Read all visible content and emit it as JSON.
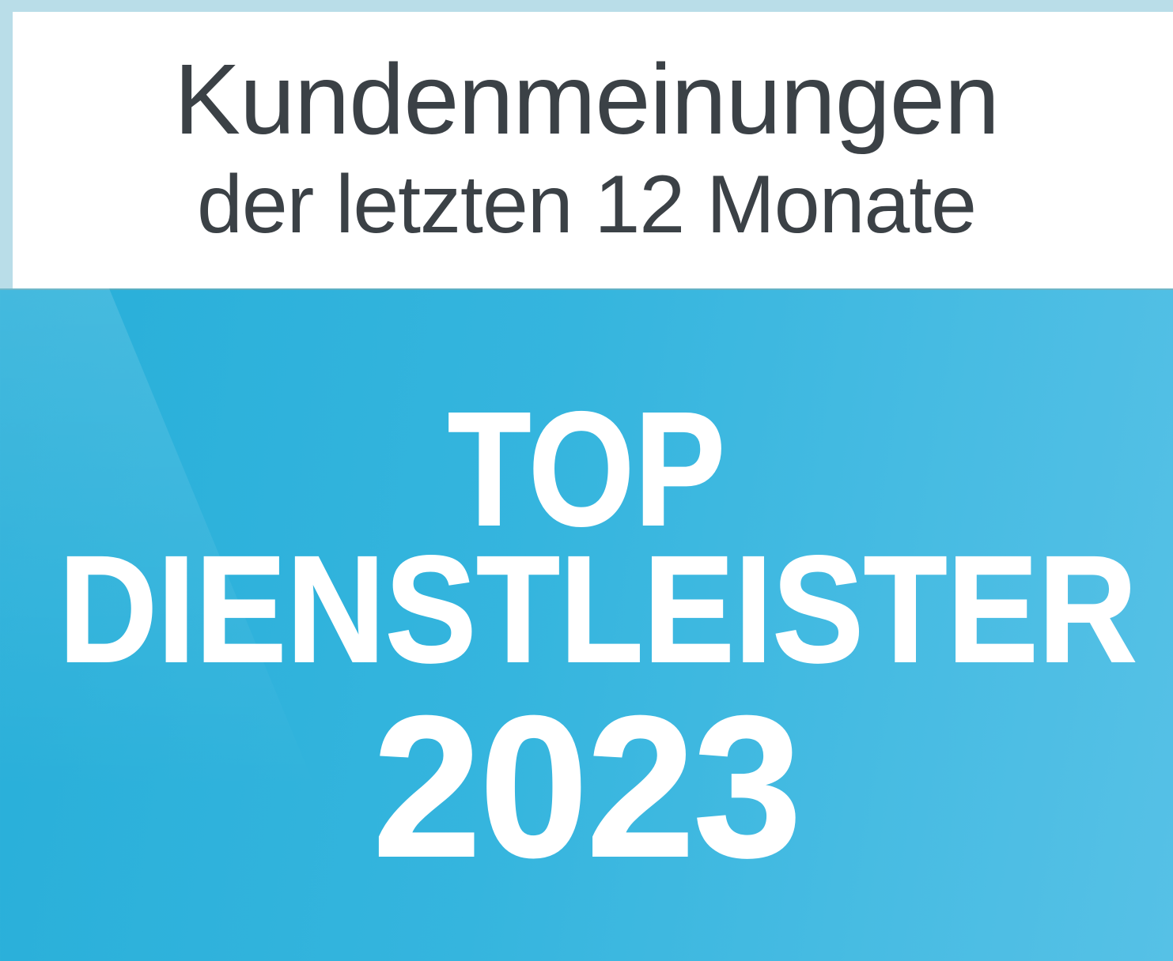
{
  "badge": {
    "header": {
      "line1": "Kundenmeinungen",
      "line2": "der letzten 12 Monate"
    },
    "award": {
      "line1": "TOP",
      "line2": "DIENSTLEISTER",
      "year": "2023"
    }
  },
  "colors": {
    "border": "#b9dde8",
    "panel": "#ffffff",
    "heading_text": "#3b4146",
    "award_text": "#ffffff",
    "blue_left": "#28afd9",
    "blue_right": "#56c1e6"
  }
}
